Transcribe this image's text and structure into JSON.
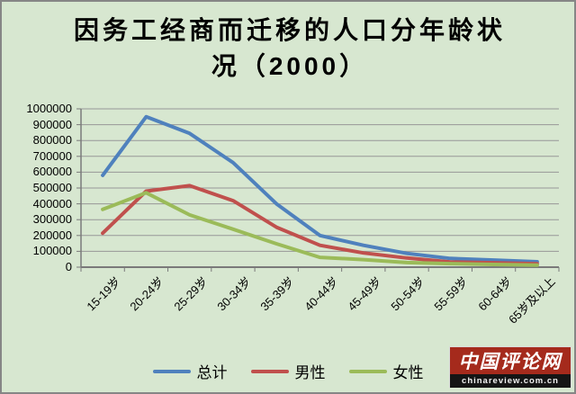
{
  "title": "因务工经商而迁移的人口分年龄状况（2000）",
  "colors": {
    "background": "#d7e7d0",
    "gridline": "#979797",
    "axis": "#7a7a7a",
    "text": "#000000"
  },
  "watermark": {
    "name": "中国评论网",
    "url": "chinareview.com.cn",
    "bg_color": "#a52a1c",
    "strip_color": "#151515",
    "name_color": "#ffffff",
    "url_color": "#f2f2f2"
  },
  "chart_data": {
    "type": "line",
    "title": "因务工经商而迁移的人口分年龄状况（2000）",
    "xlabel": "",
    "ylabel": "",
    "categories": [
      "15-19岁",
      "20-24岁",
      "25-29岁",
      "30-34岁",
      "35-39岁",
      "40-44岁",
      "45-49岁",
      "50-54岁",
      "55-59岁",
      "60-64岁",
      "65岁及以上"
    ],
    "series": [
      {
        "name": "总计",
        "color": "#4f81bd",
        "values": [
          580000,
          950000,
          845000,
          660000,
          400000,
          200000,
          138000,
          87000,
          55000,
          45000,
          34000
        ]
      },
      {
        "name": "男性",
        "color": "#c0504d",
        "values": [
          215000,
          480000,
          515000,
          420000,
          252000,
          138000,
          90000,
          58000,
          33000,
          28000,
          21000
        ]
      },
      {
        "name": "女性",
        "color": "#9bbb59",
        "values": [
          365000,
          470000,
          330000,
          240000,
          148000,
          62000,
          48000,
          29000,
          22000,
          17000,
          13000
        ]
      }
    ],
    "ylim": [
      0,
      1000000
    ],
    "ytick_step": 100000,
    "grid": true,
    "legend_position": "bottom"
  }
}
